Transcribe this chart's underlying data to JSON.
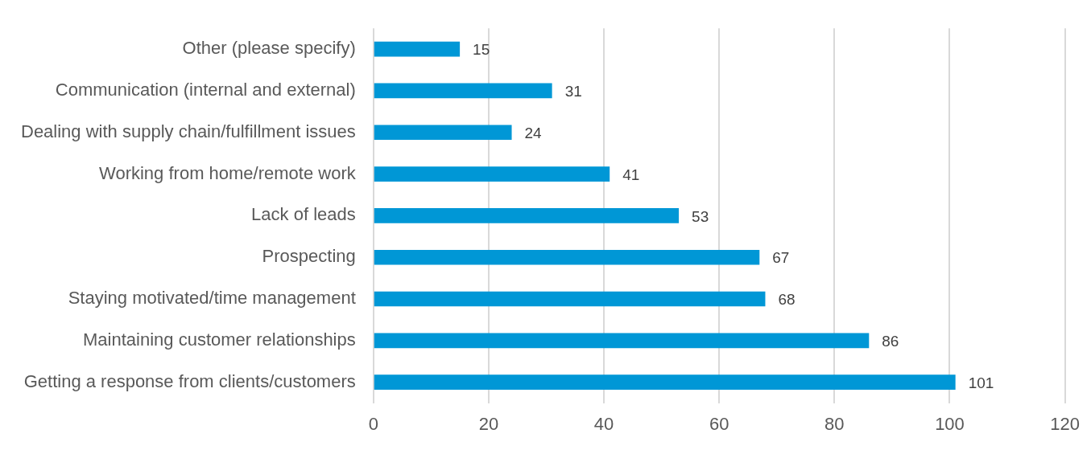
{
  "chart_data": {
    "type": "bar",
    "orientation": "horizontal",
    "categories": [
      "Other (please specify)",
      "Communication (internal and external)",
      "Dealing with supply chain/fulfillment issues",
      "Working from home/remote work",
      "Lack of leads",
      "Prospecting",
      "Staying motivated/time management",
      "Maintaining customer relationships",
      "Getting a response from clients/customers"
    ],
    "values": [
      15,
      31,
      24,
      41,
      53,
      67,
      68,
      86,
      101
    ],
    "color": "#0097d6",
    "xlim": [
      0,
      120
    ],
    "xticks": [
      0,
      20,
      40,
      60,
      80,
      100,
      120
    ],
    "grid": "x",
    "legend": false,
    "data_labels": true
  }
}
